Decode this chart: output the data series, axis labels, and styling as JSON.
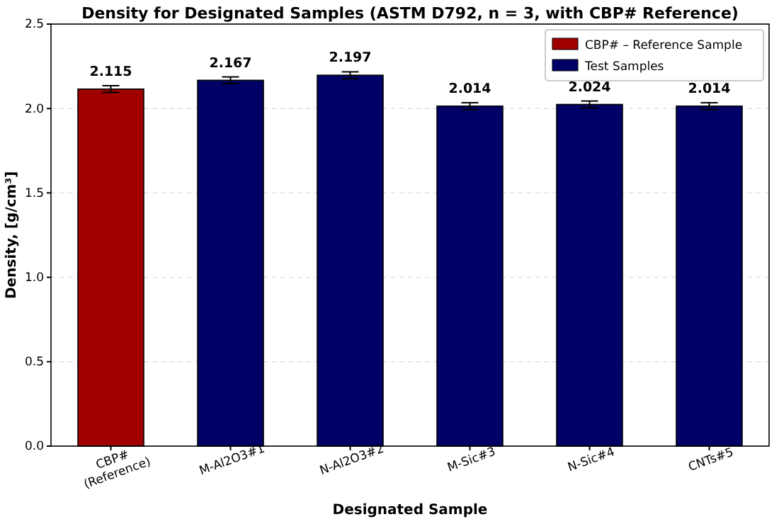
{
  "chart_data": {
    "type": "bar",
    "title": "Density for Designated Samples (ASTM D792, n = 3, with CBP# Reference)",
    "xlabel": "Designated Sample",
    "ylabel": "Density, [g/cm³]",
    "categories": [
      "CBP#\n(Reference)",
      "M-Al2O3#1",
      "N-Al2O3#2",
      "M-Sic#3",
      "N-Sic#4",
      "CNTs#5"
    ],
    "series": [
      {
        "name": "CBP# – Reference Sample",
        "color": "#a00000",
        "values": [
          2.115,
          null,
          null,
          null,
          null,
          null
        ],
        "errors": [
          0.02,
          null,
          null,
          null,
          null,
          null
        ]
      },
      {
        "name": "Test Samples",
        "color": "#000066",
        "values": [
          null,
          2.167,
          2.197,
          2.014,
          2.024,
          2.014
        ],
        "errors": [
          null,
          0.02,
          0.02,
          0.02,
          0.02,
          0.02
        ]
      }
    ],
    "data_labels": true,
    "ylim": [
      0,
      2.5
    ],
    "yticks": [
      {
        "value": 0,
        "label": "0.0"
      },
      {
        "value": 0.5,
        "label": "0.5"
      },
      {
        "value": 1,
        "label": "1.0"
      },
      {
        "value": 1.5,
        "label": "1.5"
      },
      {
        "value": 2,
        "label": "2.0"
      },
      {
        "value": 2.5,
        "label": "2.5"
      }
    ],
    "grid": "y",
    "legend": "top right"
  }
}
